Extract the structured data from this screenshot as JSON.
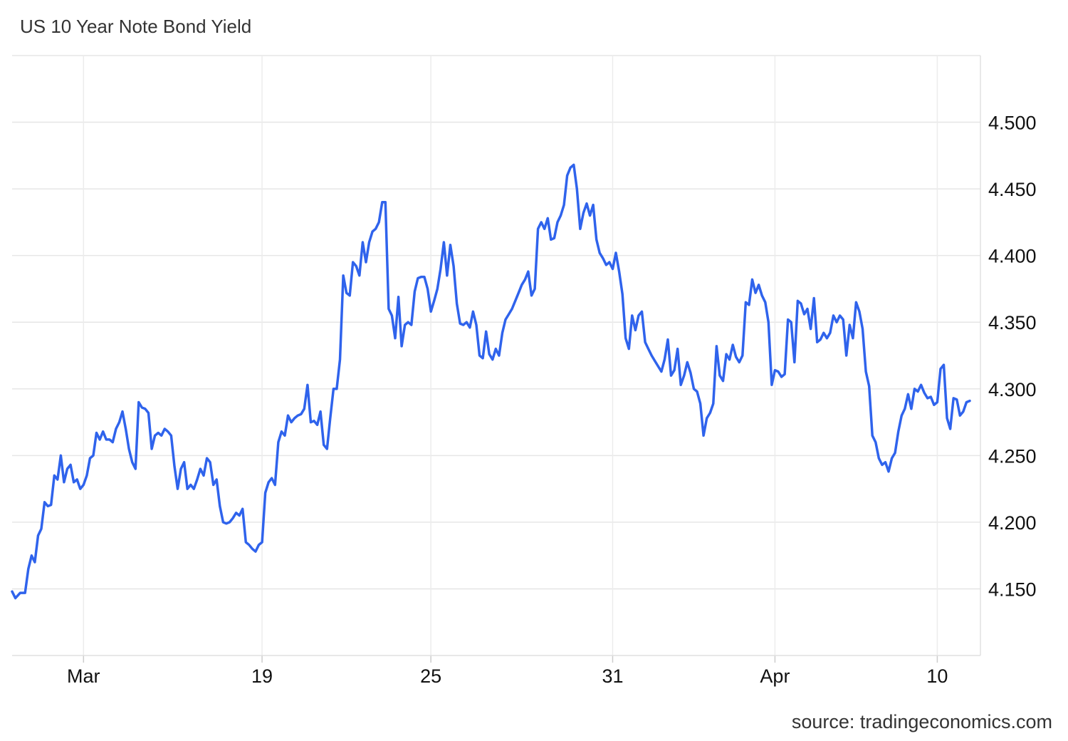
{
  "chart_data": {
    "type": "line",
    "title": "US 10 Year Note Bond Yield",
    "source": "source: tradingeconomics.com",
    "xlabel": "",
    "ylabel": "",
    "ylim": [
      4.1,
      4.55
    ],
    "xlim": [
      0,
      5.9
    ],
    "y_ticks": [
      4.15,
      4.2,
      4.25,
      4.3,
      4.35,
      4.4,
      4.45,
      4.5
    ],
    "y_tick_labels": [
      "4.150",
      "4.200",
      "4.250",
      "4.300",
      "4.350",
      "4.400",
      "4.450",
      "4.500"
    ],
    "x_ticks": [
      {
        "label": "Mar",
        "x": 0.44
      },
      {
        "label": "19",
        "x": 1.54
      },
      {
        "label": "25",
        "x": 2.58
      },
      {
        "label": "31",
        "x": 3.7
      },
      {
        "label": "Apr",
        "x": 4.7
      },
      {
        "label": "10",
        "x": 5.7
      }
    ],
    "grid": true,
    "legend": "none",
    "line_color": "#2f63ec",
    "series": [
      {
        "name": "",
        "points": [
          [
            0.0,
            4.148
          ],
          [
            0.02,
            4.143
          ],
          [
            0.05,
            4.147
          ],
          [
            0.08,
            4.147
          ],
          [
            0.1,
            4.165
          ],
          [
            0.12,
            4.175
          ],
          [
            0.14,
            4.17
          ],
          [
            0.16,
            4.19
          ],
          [
            0.18,
            4.195
          ],
          [
            0.2,
            4.215
          ],
          [
            0.22,
            4.212
          ],
          [
            0.24,
            4.213
          ],
          [
            0.26,
            4.235
          ],
          [
            0.28,
            4.232
          ],
          [
            0.3,
            4.25
          ],
          [
            0.32,
            4.23
          ],
          [
            0.34,
            4.24
          ],
          [
            0.36,
            4.243
          ],
          [
            0.38,
            4.23
          ],
          [
            0.4,
            4.232
          ],
          [
            0.42,
            4.225
          ],
          [
            0.44,
            4.228
          ],
          [
            0.46,
            4.235
          ],
          [
            0.48,
            4.248
          ],
          [
            0.5,
            4.25
          ],
          [
            0.52,
            4.267
          ],
          [
            0.54,
            4.262
          ],
          [
            0.56,
            4.268
          ],
          [
            0.58,
            4.262
          ],
          [
            0.6,
            4.262
          ],
          [
            0.62,
            4.26
          ],
          [
            0.64,
            4.27
          ],
          [
            0.66,
            4.275
          ],
          [
            0.68,
            4.283
          ],
          [
            0.7,
            4.27
          ],
          [
            0.72,
            4.255
          ],
          [
            0.74,
            4.245
          ],
          [
            0.76,
            4.24
          ],
          [
            0.78,
            4.29
          ],
          [
            0.8,
            4.286
          ],
          [
            0.82,
            4.285
          ],
          [
            0.84,
            4.282
          ],
          [
            0.86,
            4.255
          ],
          [
            0.88,
            4.265
          ],
          [
            0.9,
            4.267
          ],
          [
            0.92,
            4.265
          ],
          [
            0.94,
            4.27
          ],
          [
            0.96,
            4.268
          ],
          [
            0.98,
            4.265
          ],
          [
            1.0,
            4.242
          ],
          [
            1.02,
            4.225
          ],
          [
            1.04,
            4.24
          ],
          [
            1.06,
            4.245
          ],
          [
            1.08,
            4.225
          ],
          [
            1.1,
            4.228
          ],
          [
            1.12,
            4.225
          ],
          [
            1.14,
            4.232
          ],
          [
            1.16,
            4.24
          ],
          [
            1.18,
            4.235
          ],
          [
            1.2,
            4.248
          ],
          [
            1.22,
            4.245
          ],
          [
            1.24,
            4.228
          ],
          [
            1.26,
            4.232
          ],
          [
            1.28,
            4.212
          ],
          [
            1.3,
            4.2
          ],
          [
            1.32,
            4.199
          ],
          [
            1.34,
            4.2
          ],
          [
            1.36,
            4.203
          ],
          [
            1.38,
            4.207
          ],
          [
            1.4,
            4.205
          ],
          [
            1.42,
            4.21
          ],
          [
            1.44,
            4.185
          ],
          [
            1.46,
            4.183
          ],
          [
            1.48,
            4.18
          ],
          [
            1.5,
            4.178
          ],
          [
            1.52,
            4.183
          ],
          [
            1.54,
            4.185
          ],
          [
            1.56,
            4.222
          ],
          [
            1.58,
            4.23
          ],
          [
            1.6,
            4.233
          ],
          [
            1.62,
            4.228
          ],
          [
            1.64,
            4.26
          ],
          [
            1.66,
            4.268
          ],
          [
            1.68,
            4.265
          ],
          [
            1.7,
            4.28
          ],
          [
            1.72,
            4.275
          ],
          [
            1.74,
            4.278
          ],
          [
            1.76,
            4.28
          ],
          [
            1.78,
            4.281
          ],
          [
            1.8,
            4.285
          ],
          [
            1.82,
            4.303
          ],
          [
            1.84,
            4.275
          ],
          [
            1.86,
            4.276
          ],
          [
            1.88,
            4.273
          ],
          [
            1.9,
            4.283
          ],
          [
            1.92,
            4.258
          ],
          [
            1.94,
            4.255
          ],
          [
            1.96,
            4.278
          ],
          [
            1.98,
            4.3
          ],
          [
            2.0,
            4.3
          ],
          [
            2.02,
            4.322
          ],
          [
            2.04,
            4.385
          ],
          [
            2.06,
            4.372
          ],
          [
            2.08,
            4.37
          ],
          [
            2.1,
            4.395
          ],
          [
            2.12,
            4.392
          ],
          [
            2.14,
            4.385
          ],
          [
            2.16,
            4.41
          ],
          [
            2.18,
            4.395
          ],
          [
            2.2,
            4.41
          ],
          [
            2.22,
            4.418
          ],
          [
            2.24,
            4.42
          ],
          [
            2.26,
            4.425
          ],
          [
            2.28,
            4.44
          ],
          [
            2.3,
            4.44
          ],
          [
            2.32,
            4.36
          ],
          [
            2.34,
            4.355
          ],
          [
            2.36,
            4.338
          ],
          [
            2.38,
            4.369
          ],
          [
            2.4,
            4.332
          ],
          [
            2.42,
            4.348
          ],
          [
            2.44,
            4.35
          ],
          [
            2.46,
            4.348
          ],
          [
            2.48,
            4.373
          ],
          [
            2.5,
            4.383
          ],
          [
            2.52,
            4.384
          ],
          [
            2.54,
            4.384
          ],
          [
            2.56,
            4.375
          ],
          [
            2.58,
            4.358
          ],
          [
            2.6,
            4.366
          ],
          [
            2.62,
            4.375
          ],
          [
            2.64,
            4.39
          ],
          [
            2.66,
            4.41
          ],
          [
            2.68,
            4.385
          ],
          [
            2.7,
            4.408
          ],
          [
            2.72,
            4.392
          ],
          [
            2.74,
            4.364
          ],
          [
            2.76,
            4.349
          ],
          [
            2.78,
            4.348
          ],
          [
            2.8,
            4.35
          ],
          [
            2.82,
            4.346
          ],
          [
            2.84,
            4.358
          ],
          [
            2.86,
            4.348
          ],
          [
            2.88,
            4.325
          ],
          [
            2.9,
            4.323
          ],
          [
            2.92,
            4.343
          ],
          [
            2.94,
            4.326
          ],
          [
            2.96,
            4.322
          ],
          [
            2.98,
            4.33
          ],
          [
            3.0,
            4.325
          ],
          [
            3.02,
            4.342
          ],
          [
            3.04,
            4.352
          ],
          [
            3.06,
            4.356
          ],
          [
            3.08,
            4.36
          ],
          [
            3.1,
            4.366
          ],
          [
            3.12,
            4.372
          ],
          [
            3.14,
            4.378
          ],
          [
            3.16,
            4.382
          ],
          [
            3.18,
            4.388
          ],
          [
            3.2,
            4.37
          ],
          [
            3.22,
            4.375
          ],
          [
            3.24,
            4.42
          ],
          [
            3.26,
            4.425
          ],
          [
            3.28,
            4.42
          ],
          [
            3.3,
            4.428
          ],
          [
            3.32,
            4.412
          ],
          [
            3.34,
            4.413
          ],
          [
            3.36,
            4.425
          ],
          [
            3.38,
            4.43
          ],
          [
            3.4,
            4.438
          ],
          [
            3.42,
            4.46
          ],
          [
            3.44,
            4.466
          ],
          [
            3.46,
            4.468
          ],
          [
            3.48,
            4.45
          ],
          [
            3.5,
            4.42
          ],
          [
            3.52,
            4.432
          ],
          [
            3.54,
            4.439
          ],
          [
            3.56,
            4.43
          ],
          [
            3.58,
            4.438
          ],
          [
            3.6,
            4.412
          ],
          [
            3.62,
            4.402
          ],
          [
            3.64,
            4.398
          ],
          [
            3.66,
            4.393
          ],
          [
            3.68,
            4.395
          ],
          [
            3.7,
            4.39
          ],
          [
            3.72,
            4.402
          ],
          [
            3.74,
            4.388
          ],
          [
            3.76,
            4.371
          ],
          [
            3.78,
            4.338
          ],
          [
            3.8,
            4.33
          ],
          [
            3.82,
            4.355
          ],
          [
            3.84,
            4.344
          ],
          [
            3.86,
            4.355
          ],
          [
            3.88,
            4.358
          ],
          [
            3.9,
            4.335
          ],
          [
            3.92,
            4.33
          ],
          [
            3.94,
            4.325
          ],
          [
            3.96,
            4.321
          ],
          [
            3.98,
            4.317
          ],
          [
            4.0,
            4.313
          ],
          [
            4.02,
            4.322
          ],
          [
            4.04,
            4.337
          ],
          [
            4.06,
            4.31
          ],
          [
            4.08,
            4.314
          ],
          [
            4.1,
            4.33
          ],
          [
            4.12,
            4.303
          ],
          [
            4.14,
            4.31
          ],
          [
            4.16,
            4.32
          ],
          [
            4.18,
            4.312
          ],
          [
            4.2,
            4.3
          ],
          [
            4.22,
            4.298
          ],
          [
            4.24,
            4.289
          ],
          [
            4.26,
            4.265
          ],
          [
            4.28,
            4.278
          ],
          [
            4.3,
            4.282
          ],
          [
            4.32,
            4.289
          ],
          [
            4.34,
            4.332
          ],
          [
            4.36,
            4.31
          ],
          [
            4.38,
            4.306
          ],
          [
            4.4,
            4.326
          ],
          [
            4.42,
            4.322
          ],
          [
            4.44,
            4.333
          ],
          [
            4.46,
            4.324
          ],
          [
            4.48,
            4.32
          ],
          [
            4.5,
            4.325
          ],
          [
            4.52,
            4.365
          ],
          [
            4.54,
            4.363
          ],
          [
            4.56,
            4.382
          ],
          [
            4.58,
            4.372
          ],
          [
            4.6,
            4.378
          ],
          [
            4.62,
            4.37
          ],
          [
            4.64,
            4.365
          ],
          [
            4.66,
            4.35
          ],
          [
            4.68,
            4.303
          ],
          [
            4.7,
            4.314
          ],
          [
            4.72,
            4.313
          ],
          [
            4.74,
            4.309
          ],
          [
            4.76,
            4.311
          ],
          [
            4.78,
            4.352
          ],
          [
            4.8,
            4.35
          ],
          [
            4.82,
            4.32
          ],
          [
            4.84,
            4.366
          ],
          [
            4.86,
            4.364
          ],
          [
            4.88,
            4.356
          ],
          [
            4.9,
            4.36
          ],
          [
            4.92,
            4.345
          ],
          [
            4.94,
            4.368
          ],
          [
            4.96,
            4.335
          ],
          [
            4.98,
            4.337
          ],
          [
            5.0,
            4.342
          ],
          [
            5.02,
            4.338
          ],
          [
            5.04,
            4.342
          ],
          [
            5.06,
            4.355
          ],
          [
            5.08,
            4.35
          ],
          [
            5.1,
            4.355
          ],
          [
            5.12,
            4.352
          ],
          [
            5.14,
            4.325
          ],
          [
            5.16,
            4.348
          ],
          [
            5.18,
            4.338
          ],
          [
            5.2,
            4.365
          ],
          [
            5.22,
            4.358
          ],
          [
            5.24,
            4.345
          ],
          [
            5.26,
            4.313
          ],
          [
            5.28,
            4.302
          ],
          [
            5.3,
            4.265
          ],
          [
            5.32,
            4.26
          ],
          [
            5.34,
            4.248
          ],
          [
            5.36,
            4.243
          ],
          [
            5.38,
            4.245
          ],
          [
            5.4,
            4.238
          ],
          [
            5.42,
            4.248
          ],
          [
            5.44,
            4.252
          ],
          [
            5.46,
            4.268
          ],
          [
            5.48,
            4.28
          ],
          [
            5.5,
            4.285
          ],
          [
            5.52,
            4.296
          ],
          [
            5.54,
            4.285
          ],
          [
            5.56,
            4.3
          ],
          [
            5.58,
            4.298
          ],
          [
            5.6,
            4.303
          ],
          [
            5.62,
            4.297
          ],
          [
            5.64,
            4.293
          ],
          [
            5.66,
            4.294
          ],
          [
            5.68,
            4.288
          ],
          [
            5.7,
            4.29
          ],
          [
            5.72,
            4.315
          ],
          [
            5.74,
            4.318
          ],
          [
            5.76,
            4.278
          ],
          [
            5.78,
            4.27
          ],
          [
            5.8,
            4.293
          ],
          [
            5.82,
            4.292
          ],
          [
            5.84,
            4.28
          ],
          [
            5.86,
            4.283
          ],
          [
            5.88,
            4.29
          ],
          [
            5.9,
            4.291
          ]
        ]
      }
    ]
  }
}
